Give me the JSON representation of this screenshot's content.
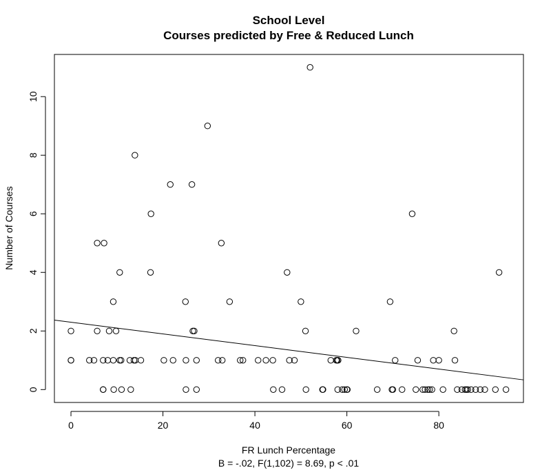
{
  "chart_data": {
    "type": "scatter",
    "title": "School Level",
    "subtitle": "Courses predicted by Free & Reduced Lunch",
    "xlabel": "FR Lunch Percentage",
    "xlabel_note": "B = -.02, F(1,102) = 8.69, p < .01",
    "ylabel": "Number of Courses",
    "xlim": [
      -3.6,
      98.4
    ],
    "ylim": [
      -0.44,
      11.44
    ],
    "x_ticks": [
      "0",
      "20",
      "40",
      "60",
      "80"
    ],
    "y_ticks": [
      "0",
      "2",
      "4",
      "6",
      "8",
      "10"
    ],
    "grid": false,
    "legend": "none",
    "regression_line": {
      "intercept": 2.3,
      "slope": -0.02
    },
    "points": [
      {
        "x": 0,
        "y": 2
      },
      {
        "x": 0,
        "y": 1
      },
      {
        "x": 0,
        "y": 1
      },
      {
        "x": 4,
        "y": 1
      },
      {
        "x": 5,
        "y": 1
      },
      {
        "x": 5.7,
        "y": 5
      },
      {
        "x": 5.7,
        "y": 2
      },
      {
        "x": 7.2,
        "y": 5
      },
      {
        "x": 7,
        "y": 1
      },
      {
        "x": 7,
        "y": 0
      },
      {
        "x": 7,
        "y": 0
      },
      {
        "x": 8,
        "y": 1
      },
      {
        "x": 8.3,
        "y": 2
      },
      {
        "x": 9.2,
        "y": 3
      },
      {
        "x": 9.2,
        "y": 1
      },
      {
        "x": 9.3,
        "y": 0
      },
      {
        "x": 9.8,
        "y": 2
      },
      {
        "x": 10.6,
        "y": 4
      },
      {
        "x": 10.6,
        "y": 1
      },
      {
        "x": 10.9,
        "y": 1
      },
      {
        "x": 11,
        "y": 0
      },
      {
        "x": 12.8,
        "y": 1
      },
      {
        "x": 13,
        "y": 0
      },
      {
        "x": 13.9,
        "y": 8
      },
      {
        "x": 13.7,
        "y": 1
      },
      {
        "x": 14,
        "y": 1
      },
      {
        "x": 15.2,
        "y": 1
      },
      {
        "x": 17.4,
        "y": 6
      },
      {
        "x": 17.3,
        "y": 4
      },
      {
        "x": 20.2,
        "y": 1
      },
      {
        "x": 21.6,
        "y": 7
      },
      {
        "x": 22.2,
        "y": 1
      },
      {
        "x": 24.9,
        "y": 3
      },
      {
        "x": 25,
        "y": 1
      },
      {
        "x": 25,
        "y": 0
      },
      {
        "x": 26.3,
        "y": 7
      },
      {
        "x": 26.5,
        "y": 2
      },
      {
        "x": 26.8,
        "y": 2
      },
      {
        "x": 27.3,
        "y": 1
      },
      {
        "x": 27.3,
        "y": 0
      },
      {
        "x": 29.7,
        "y": 9
      },
      {
        "x": 32,
        "y": 1
      },
      {
        "x": 32.7,
        "y": 5
      },
      {
        "x": 32.9,
        "y": 1
      },
      {
        "x": 34.5,
        "y": 3
      },
      {
        "x": 36.8,
        "y": 1
      },
      {
        "x": 37.4,
        "y": 1
      },
      {
        "x": 40.7,
        "y": 1
      },
      {
        "x": 42.4,
        "y": 1
      },
      {
        "x": 43.9,
        "y": 1
      },
      {
        "x": 44,
        "y": 0
      },
      {
        "x": 45.9,
        "y": 0
      },
      {
        "x": 47,
        "y": 4
      },
      {
        "x": 47.5,
        "y": 1
      },
      {
        "x": 48.6,
        "y": 1
      },
      {
        "x": 50,
        "y": 3
      },
      {
        "x": 51,
        "y": 2
      },
      {
        "x": 51.1,
        "y": 0
      },
      {
        "x": 52,
        "y": 11
      },
      {
        "x": 54.7,
        "y": 0
      },
      {
        "x": 54.8,
        "y": 0
      },
      {
        "x": 56.5,
        "y": 1
      },
      {
        "x": 57.7,
        "y": 1
      },
      {
        "x": 57.9,
        "y": 1
      },
      {
        "x": 58.1,
        "y": 1
      },
      {
        "x": 58,
        "y": 0
      },
      {
        "x": 59,
        "y": 0
      },
      {
        "x": 59.5,
        "y": 0
      },
      {
        "x": 60,
        "y": 0
      },
      {
        "x": 60.1,
        "y": 0
      },
      {
        "x": 62,
        "y": 2
      },
      {
        "x": 66.6,
        "y": 0
      },
      {
        "x": 69.4,
        "y": 3
      },
      {
        "x": 69.8,
        "y": 0
      },
      {
        "x": 70,
        "y": 0
      },
      {
        "x": 70.5,
        "y": 1
      },
      {
        "x": 72,
        "y": 0
      },
      {
        "x": 74.2,
        "y": 6
      },
      {
        "x": 75,
        "y": 0
      },
      {
        "x": 75.4,
        "y": 1
      },
      {
        "x": 76.5,
        "y": 0
      },
      {
        "x": 77,
        "y": 0
      },
      {
        "x": 77.6,
        "y": 0
      },
      {
        "x": 78,
        "y": 0
      },
      {
        "x": 78.5,
        "y": 0
      },
      {
        "x": 78.8,
        "y": 1
      },
      {
        "x": 80,
        "y": 1
      },
      {
        "x": 80.9,
        "y": 0
      },
      {
        "x": 83.3,
        "y": 2
      },
      {
        "x": 83.5,
        "y": 1
      },
      {
        "x": 84,
        "y": 0
      },
      {
        "x": 85,
        "y": 0
      },
      {
        "x": 85.7,
        "y": 0
      },
      {
        "x": 86,
        "y": 0
      },
      {
        "x": 86.3,
        "y": 0
      },
      {
        "x": 87,
        "y": 0
      },
      {
        "x": 88,
        "y": 0
      },
      {
        "x": 89,
        "y": 0
      },
      {
        "x": 90,
        "y": 0
      },
      {
        "x": 92.3,
        "y": 0
      },
      {
        "x": 93.1,
        "y": 4
      },
      {
        "x": 94.6,
        "y": 0
      }
    ]
  }
}
